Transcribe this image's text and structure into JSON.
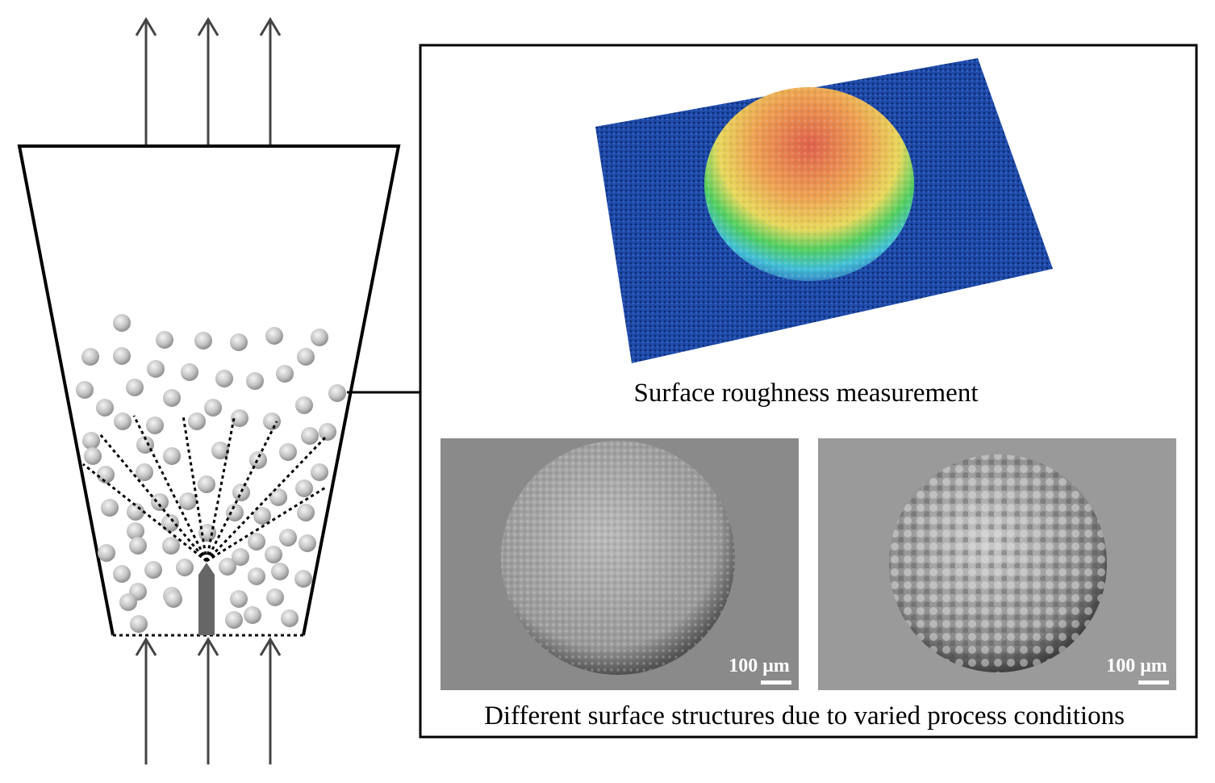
{
  "panel": {
    "top_caption": "Surface roughness measurement",
    "bottom_caption": "Different surface structures due to varied process conditions",
    "scale_bars": [
      "100 μm",
      "100 μm"
    ]
  }
}
